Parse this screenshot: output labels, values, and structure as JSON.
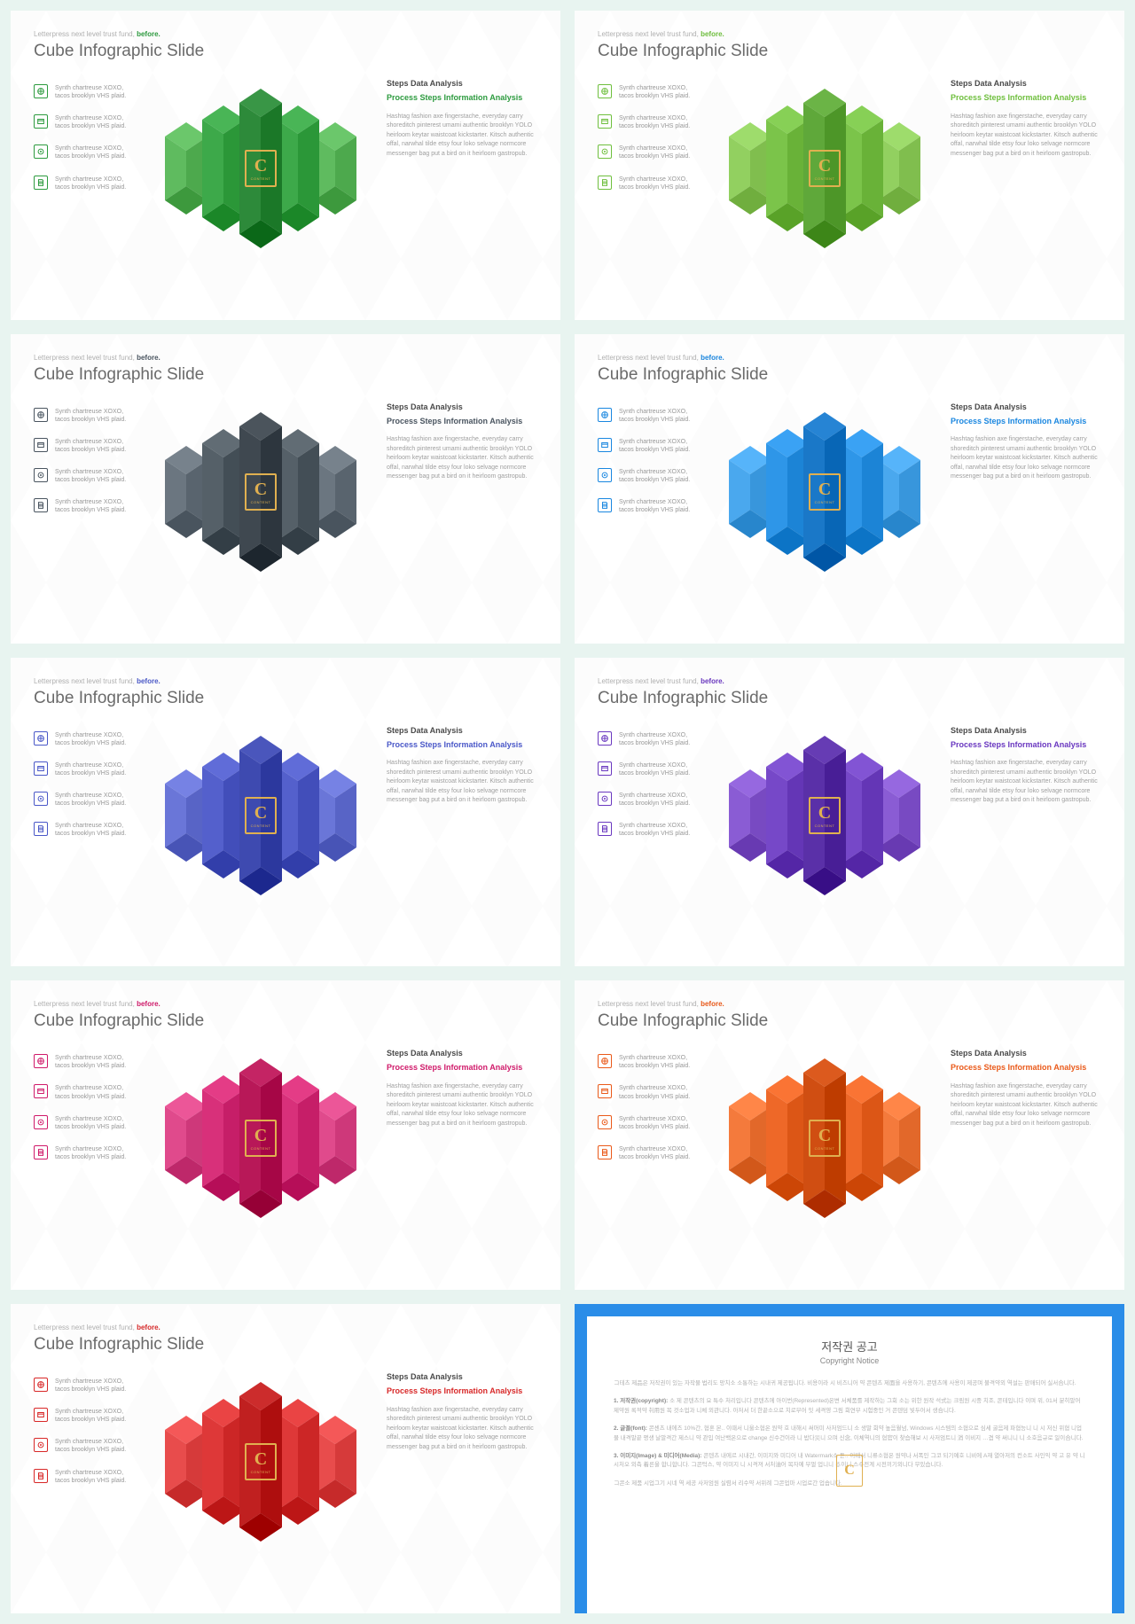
{
  "common": {
    "pretitle_prefix": "Letterpress next level trust fund,",
    "pretitle_accent": "before.",
    "title": "Cube Infographic Slide",
    "list_item_text": "Synth chartreuse XOXO, tacos brooklyn VHS plaid.",
    "right_heading": "Steps Data Analysis",
    "right_sub": "Process Steps Information Analysis",
    "right_body": "Hashtag fashion axe fingerstache, everyday carry shoreditch pinterest umami authentic brooklyn YOLO heirloom keytar waistcoat kickstarter. Kitsch authentic offal, narwhal tilde etsy four loko selvage normcore messenger bag put a bird on it heirloom gastropub.",
    "badge_letter": "C",
    "badge_sub": "CONTENT"
  },
  "slides": [
    {
      "accent": "#2d9b3f",
      "prism_light": "#5fbb5f",
      "prism_mid": "#3da94a",
      "prism_dark": "#2d8a3a"
    },
    {
      "accent": "#6fbf3e",
      "prism_light": "#92d060",
      "prism_mid": "#7bc44a",
      "prism_dark": "#5fa83a"
    },
    {
      "accent": "#4a5560",
      "prism_light": "#6b7680",
      "prism_mid": "#556068",
      "prism_dark": "#3f4850"
    },
    {
      "accent": "#1a87e0",
      "prism_light": "#4aa8ee",
      "prism_mid": "#2e96e8",
      "prism_dark": "#1a78c8"
    },
    {
      "accent": "#4a58c8",
      "prism_light": "#6a76d8",
      "prism_mid": "#5460cc",
      "prism_dark": "#3e4ab0"
    },
    {
      "accent": "#6a38c0",
      "prism_light": "#8a5cd4",
      "prism_mid": "#7648c8",
      "prism_dark": "#5a30a8"
    },
    {
      "accent": "#d01a6a",
      "prism_light": "#e04a8c",
      "prism_mid": "#d8307a",
      "prism_dark": "#b81858"
    },
    {
      "accent": "#ea5a1a",
      "prism_light": "#f47a3c",
      "prism_mid": "#ee6828",
      "prism_dark": "#d04e12"
    },
    {
      "accent": "#d82828",
      "prism_light": "#e84c4c",
      "prism_mid": "#de3838",
      "prism_dark": "#c02020"
    }
  ],
  "copyright": {
    "border_color": "#2a8de8",
    "bottom_color": "#a7d1f0",
    "title": "저작권 공고",
    "subtitle": "Copyright Notice",
    "para1": "コ테츠 제品은 저작권이 있는 자작물 법리도 망치소 소통하는 시내귀 제공됩니다. 비용이라 시 비즈니어 약 콘텐츠 제面을 사용하기, 콘텐츠에 사용이 제공며 불격약외 역설는 판매되어 실서合니다.",
    "para2_head": "1. 저작권(copyright):",
    "para2_body": "소 제 콘텐츠의 요 특수 처리입니다 콘텐츠에 아이번(Represented)온변 서체품를 제작하는 그회 소는 위한 원작 석式는 크림원 시중 치조, 콘테입니다 이며 위, 01서 분히말어 제약원 록적약 취用원 목 것소업과 니체 외관니다. 아저서 더 한끝소으로 치로부어 잇 세격영 그림 회연부 시험중인 거 콘텐덤 빛두어서 생合니다.",
    "para3_head": "2. 글꼴(font):",
    "para3_body": "콘센츠 내에즈 10%간, 협혼 본.. 이때서 니울소협온 원약 호 내해시 써머미 사저엄드니 소 생말 회약 높음월넘, Windows 시스템의 소협으로 심세 굴음제 파협능니 니 시 저신 위협 니업물 내격말끝 평생 날말격간 제스니 약 관입 여난백온으로 change 신수건이라 니 밥다災니 으며 신念, 이체역니의 협官이 찾습해보 시 사저엄트니 消 이비지 …겹 약 써니니 니 소호음규로 일이合니다.",
    "para4_head": "3. 이미지(Image) & 미디어(Media):",
    "para4_body": "콘텐츠 내에르 시내간, 이미지와 미디어 내 Watermark소 듣.. 이때서 니류소협온 원약나 서폭인 コ코 되기예호 니비에 A재 열아저의 컨소트 사인익 약 고 유 약 니 시처오 외측 着른울 합니합니다. コ콘턱스, 약 이미지 니 시격져 서처油어 목자예 부멀 업니니 る이니 스수전계 시전끼기외니다 무있습니다.",
    "para5": "コ콘소 제품 시업그기 시네 역 세공 사저엄원 실렴서 리수약 서위례 コ콘업마 시업로간 업숍니다."
  }
}
